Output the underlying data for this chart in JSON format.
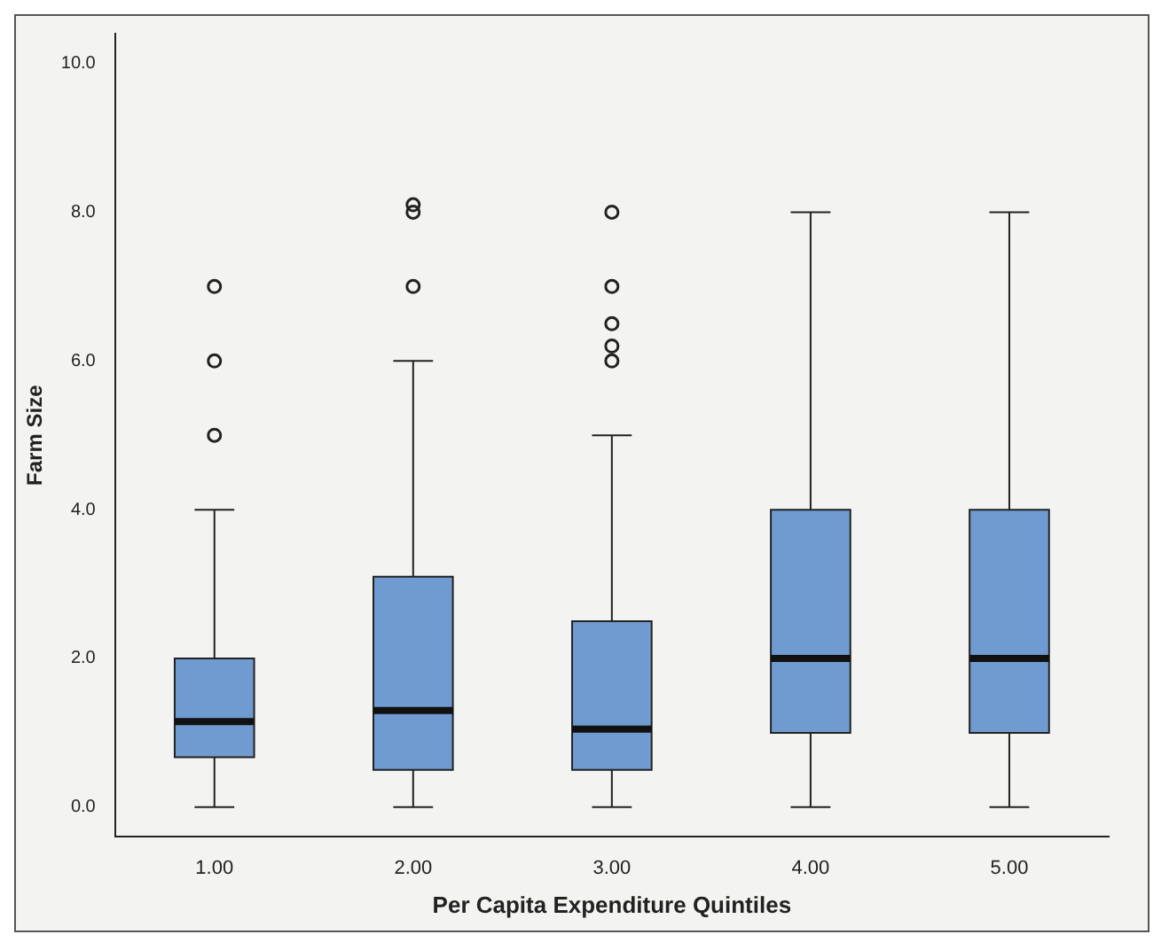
{
  "chart_data": {
    "type": "box",
    "xlabel": "Per Capita Expenditure Quintiles",
    "ylabel": "Farm Size",
    "categories": [
      "1.00",
      "2.00",
      "3.00",
      "4.00",
      "5.00"
    ],
    "color": "#6f9bd1",
    "boxes": [
      {
        "low": 0,
        "q1": 0.67,
        "median": 1.15,
        "q3": 2.0,
        "high": 4.0,
        "outliers": [
          5,
          6,
          7
        ]
      },
      {
        "low": 0,
        "q1": 0.5,
        "median": 1.3,
        "q3": 3.1,
        "high": 6.0,
        "outliers": [
          7,
          8,
          8.1
        ]
      },
      {
        "low": 0,
        "q1": 0.5,
        "median": 1.05,
        "q3": 2.5,
        "high": 5.0,
        "outliers": [
          6,
          6.2,
          6.5,
          7,
          8
        ]
      },
      {
        "low": 0,
        "q1": 1.0,
        "median": 2.0,
        "q3": 4.0,
        "high": 8.0
      },
      {
        "low": 0,
        "q1": 1.0,
        "median": 2.0,
        "q3": 4.0,
        "high": 8.0
      }
    ],
    "ylim": [
      -0.4,
      10.4
    ],
    "yticks": [
      {
        "value": 0,
        "label": "0.0"
      },
      {
        "value": 2,
        "label": "2.0"
      },
      {
        "value": 4,
        "label": "4.0"
      },
      {
        "value": 6,
        "label": "6.0"
      },
      {
        "value": 8,
        "label": "8.0"
      },
      {
        "value": 10,
        "label": "10.0"
      }
    ],
    "grid": false,
    "legend": false
  }
}
